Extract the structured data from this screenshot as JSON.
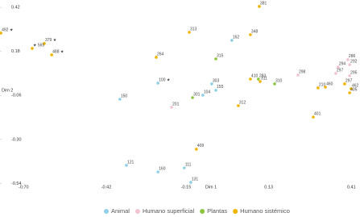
{
  "chart_data": {
    "type": "scatter",
    "x_label": "Dim 1",
    "y_label": "Dim 2",
    "xlim": [
      -0.78,
      0.42
    ],
    "ylim": [
      -0.56,
      0.46
    ],
    "xticks": [
      {
        "value": -0.7,
        "label": "-0.70"
      },
      -0.42,
      -0.15,
      0.13,
      0.41
    ],
    "yticks": [
      0.42,
      0.18,
      {
        "value": -0.06,
        "label": "-0.06"
      },
      {
        "value": -0.3,
        "label": "-0.30"
      },
      -0.54
    ],
    "series": [
      {
        "name": "Animal",
        "color": "#8fd0e8",
        "x": [
          0.005,
          -0.063,
          -0.049,
          -0.093,
          -0.245,
          -0.374,
          -0.352,
          -0.245,
          -0.156,
          -0.134
        ],
        "values": [
          0.24,
          0.003,
          -0.032,
          -0.059,
          0.007,
          -0.081,
          -0.441,
          -0.477,
          -0.455,
          -0.534
        ],
        "labels": [
          "162",
          "303",
          "155",
          "104",
          "100 ★",
          "150",
          "121",
          "160",
          "111",
          "131"
        ]
      },
      {
        "name": "Humano superficial",
        "color": "#f2c4d2",
        "x": [
          0.229,
          0.365,
          0.398,
          0.404,
          0.357,
          0.404,
          -0.199
        ],
        "values": [
          0.051,
          0.095,
          0.135,
          0.108,
          0.06,
          0.047,
          -0.125
        ],
        "labels": [
          "298",
          "294",
          "286",
          "292",
          "297",
          "295",
          "201"
        ]
      },
      {
        "name": "Plantas",
        "color": "#8cc63f",
        "x": [
          -0.049,
          0.095,
          0.15,
          -0.128
        ],
        "values": [
          0.139,
          0.029,
          0.003,
          -0.072
        ],
        "labels": [
          "315",
          "283",
          "310",
          "301"
        ]
      },
      {
        "name": "Humano sistémico",
        "color": "#f0b400",
        "x": [
          0.098,
          -0.139,
          0.068,
          -0.63,
          -0.671,
          -0.777,
          -0.605,
          -0.251,
          0.068,
          0.101,
          0.387,
          0.409,
          0.404,
          0.297,
          0.322,
          0.281,
          0.027,
          -0.115
        ],
        "values": [
          0.425,
          0.284,
          0.271,
          0.223,
          0.196,
          0.28,
          0.161,
          0.148,
          0.029,
          0.016,
          0.003,
          -0.024,
          -0.046,
          -0.019,
          -0.015,
          -0.178,
          -0.116,
          -0.353
        ],
        "labels": [
          "381",
          "313",
          "348",
          "379 ★",
          "★ 565",
          "492 ★",
          "488 ★",
          "264",
          "410",
          "311",
          "297",
          "462",
          "405",
          "210",
          "460",
          "401",
          "312",
          "409"
        ]
      }
    ]
  }
}
